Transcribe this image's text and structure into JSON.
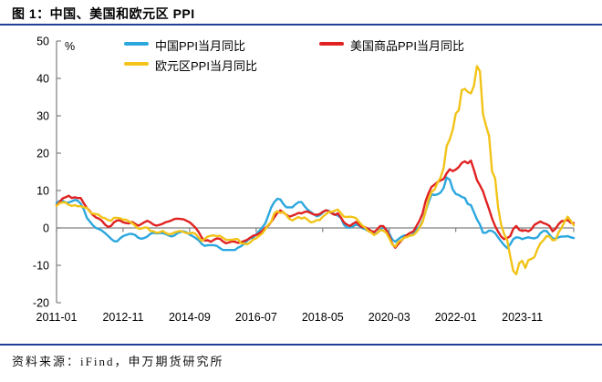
{
  "header": {
    "title": "图 1：中国、美国和欧元区 PPI"
  },
  "footer": {
    "source": "资料来源：iFind，申万期货研究所"
  },
  "colors": {
    "rule_navy": "#20409A",
    "axis_gray": "#808080"
  },
  "chart_data": {
    "type": "line",
    "title": "中国、美国和欧元区 PPI",
    "unit_label": "%",
    "x_start": "2011-01",
    "freq": "monthly",
    "n_months": 172,
    "xlabel": "",
    "ylabel": "%",
    "ylim": [
      -20,
      50
    ],
    "y_ticks": [
      50,
      40,
      30,
      20,
      10,
      0,
      -10,
      -20
    ],
    "x_tick_labels": [
      "2011-01",
      "2012-11",
      "2014-09",
      "2016-07",
      "2018-05",
      "2020-03",
      "2022-01",
      "2023-11"
    ],
    "x_tick_month_indices": [
      0,
      22,
      44,
      66,
      88,
      110,
      132,
      154
    ],
    "grid": false,
    "legend_position": "top",
    "series": [
      {
        "name": "中国PPI当月同比",
        "color": "#2BA7DE",
        "values": [
          6.6,
          7.2,
          7.3,
          6.8,
          6.8,
          7.1,
          7.5,
          7.3,
          6.5,
          5.0,
          2.7,
          1.7,
          0.7,
          0.0,
          -0.3,
          -0.7,
          -1.4,
          -2.1,
          -2.9,
          -3.5,
          -3.6,
          -2.8,
          -2.2,
          -1.9,
          -1.6,
          -1.6,
          -1.9,
          -2.6,
          -2.9,
          -2.7,
          -2.3,
          -1.6,
          -1.3,
          -1.5,
          -1.4,
          -1.4,
          -1.6,
          -2.0,
          -2.3,
          -2.0,
          -1.4,
          -1.1,
          -0.9,
          -1.2,
          -1.8,
          -2.2,
          -2.7,
          -3.3,
          -4.3,
          -4.8,
          -4.6,
          -4.6,
          -4.6,
          -4.8,
          -5.4,
          -5.9,
          -5.9,
          -5.9,
          -5.9,
          -5.9,
          -5.3,
          -4.9,
          -4.3,
          -3.4,
          -2.8,
          -2.6,
          -1.7,
          -0.8,
          0.1,
          1.2,
          3.3,
          5.5,
          6.9,
          7.8,
          7.6,
          6.4,
          5.5,
          5.5,
          5.5,
          6.3,
          6.9,
          6.9,
          5.8,
          4.9,
          4.3,
          3.7,
          3.1,
          3.4,
          4.1,
          4.7,
          4.6,
          4.1,
          3.6,
          3.3,
          2.7,
          0.9,
          0.1,
          0.1,
          0.4,
          0.9,
          0.6,
          0.0,
          -0.3,
          -0.8,
          -1.2,
          -1.6,
          -1.4,
          -0.5,
          0.1,
          -0.4,
          -1.5,
          -3.1,
          -3.7,
          -3.0,
          -2.4,
          -2.0,
          -2.1,
          -2.1,
          -1.5,
          -0.4,
          0.3,
          1.7,
          4.4,
          6.8,
          9.0,
          8.8,
          9.0,
          9.5,
          10.7,
          13.5,
          12.9,
          10.3,
          9.1,
          8.8,
          8.3,
          8.0,
          6.4,
          6.1,
          4.2,
          2.3,
          0.9,
          -1.3,
          -1.3,
          -0.7,
          -0.8,
          -1.4,
          -2.5,
          -3.6,
          -4.6,
          -5.4,
          -4.4,
          -3.0,
          -2.5,
          -2.6,
          -3.0,
          -2.7,
          -2.5,
          -2.7,
          -2.8,
          -2.5,
          -1.4,
          -0.8,
          -0.8,
          -1.8,
          -2.8,
          -2.9,
          -2.5,
          -2.3,
          -2.3,
          -2.2,
          -2.5,
          -2.7
        ]
      },
      {
        "name": "美国商品PPI当月同比",
        "color": "#E02222",
        "values": [
          6.0,
          6.9,
          7.9,
          8.2,
          8.6,
          8.0,
          8.2,
          8.0,
          8.0,
          6.6,
          5.4,
          4.5,
          3.5,
          2.8,
          2.5,
          1.9,
          0.9,
          0.3,
          0.5,
          1.5,
          2.0,
          2.0,
          1.5,
          1.3,
          1.2,
          1.6,
          1.1,
          0.6,
          1.0,
          1.5,
          1.9,
          1.5,
          0.9,
          0.6,
          0.8,
          1.1,
          1.5,
          1.7,
          2.0,
          2.4,
          2.5,
          2.4,
          2.3,
          1.9,
          1.5,
          0.8,
          0.0,
          -1.1,
          -2.6,
          -3.4,
          -3.3,
          -3.7,
          -3.2,
          -2.8,
          -2.9,
          -3.6,
          -4.1,
          -3.9,
          -3.6,
          -3.7,
          -4.0,
          -3.8,
          -3.5,
          -3.2,
          -2.6,
          -2.1,
          -1.9,
          -1.5,
          -0.8,
          0.0,
          0.6,
          1.6,
          2.8,
          4.0,
          4.7,
          4.1,
          3.5,
          3.0,
          3.3,
          3.6,
          4.0,
          3.9,
          4.3,
          4.4,
          4.0,
          3.6,
          3.5,
          3.7,
          4.3,
          4.7,
          4.5,
          3.9,
          3.5,
          3.9,
          2.8,
          1.5,
          0.9,
          0.5,
          1.1,
          1.6,
          0.9,
          0.2,
          0.2,
          -0.2,
          -0.8,
          -1.1,
          -0.4,
          0.5,
          0.5,
          -0.5,
          -2.1,
          -4.3,
          -5.3,
          -4.3,
          -3.4,
          -2.5,
          -1.8,
          -1.3,
          -0.9,
          0.5,
          1.9,
          3.8,
          7.1,
          9.3,
          11.0,
          11.6,
          12.3,
          12.7,
          13.1,
          14.6,
          15.7,
          15.2,
          15.6,
          16.3,
          17.4,
          17.8,
          17.3,
          18.0,
          15.5,
          12.8,
          11.4,
          9.8,
          7.4,
          5.0,
          2.5,
          0.5,
          -1.0,
          -2.3,
          -3.0,
          -2.7,
          -2.2,
          -0.3,
          0.5,
          -0.5,
          -0.8,
          -0.6,
          -0.9,
          -0.4,
          0.8,
          1.3,
          1.7,
          1.3,
          1.0,
          0.5,
          -0.9,
          -0.2,
          1.0,
          1.8,
          1.9,
          2.1,
          1.4,
          1.3
        ]
      },
      {
        "name": "欧元区PPI当月同比",
        "color": "#F2C318",
        "values": [
          5.9,
          6.6,
          6.8,
          6.8,
          6.2,
          5.9,
          6.1,
          5.8,
          5.8,
          5.5,
          5.4,
          4.3,
          3.8,
          3.7,
          3.5,
          2.8,
          2.6,
          2.1,
          1.9,
          2.7,
          2.7,
          2.6,
          2.2,
          2.2,
          1.7,
          1.3,
          0.6,
          -0.2,
          -0.2,
          0.1,
          0.1,
          -0.8,
          -0.9,
          -1.3,
          -1.2,
          -0.8,
          -1.3,
          -1.7,
          -1.6,
          -1.2,
          -1.0,
          -0.8,
          -1.1,
          -1.4,
          -1.5,
          -1.3,
          -1.6,
          -2.6,
          -3.5,
          -2.9,
          -2.3,
          -2.1,
          -2.0,
          -2.2,
          -2.1,
          -2.6,
          -3.2,
          -3.2,
          -3.2,
          -3.0,
          -3.0,
          -4.1,
          -4.2,
          -4.4,
          -3.9,
          -3.1,
          -2.8,
          -2.1,
          -1.5,
          -0.4,
          0.8,
          1.6,
          3.9,
          4.5,
          4.0,
          4.3,
          3.4,
          2.4,
          2.0,
          2.5,
          2.9,
          2.5,
          2.8,
          2.2,
          1.5,
          1.6,
          2.1,
          2.1,
          3.0,
          3.6,
          4.3,
          4.3,
          4.6,
          4.9,
          4.0,
          3.0,
          2.9,
          3.0,
          2.9,
          2.6,
          1.6,
          0.7,
          0.1,
          -0.8,
          -1.2,
          -1.9,
          -1.4,
          -0.6,
          -0.7,
          -1.3,
          -2.7,
          -4.5,
          -5.0,
          -3.7,
          -3.3,
          -2.6,
          -2.4,
          -2.0,
          -1.9,
          -1.1,
          0.0,
          1.5,
          4.3,
          7.6,
          9.6,
          10.3,
          12.2,
          13.5,
          16.1,
          21.9,
          23.7,
          26.3,
          30.6,
          31.5,
          36.9,
          37.2,
          36.4,
          36.0,
          38.0,
          43.3,
          41.9,
          30.5,
          27.4,
          24.6,
          15.1,
          13.3,
          5.5,
          0.9,
          -1.6,
          -3.4,
          -7.6,
          -11.5,
          -12.4,
          -9.4,
          -8.8,
          -10.7,
          -8.6,
          -8.3,
          -7.8,
          -5.7,
          -4.1,
          -3.3,
          -2.2,
          -2.3,
          -3.3,
          -3.2,
          -1.2,
          0.0,
          1.8,
          3.0,
          1.9,
          0.7
        ]
      }
    ]
  }
}
